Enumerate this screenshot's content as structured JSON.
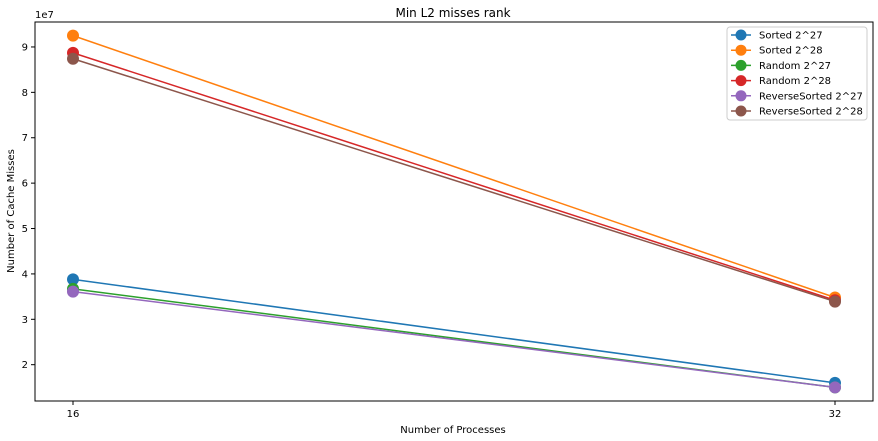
{
  "chart_data": {
    "type": "line",
    "title": "Min L2 misses rank",
    "xlabel": "Number of Processes",
    "ylabel": "Number of Cache Misses",
    "y_offset_text": "1e7",
    "x": [
      16,
      32
    ],
    "x_tick_labels": [
      "16",
      "32"
    ],
    "y_ticks": [
      2,
      3,
      4,
      5,
      6,
      7,
      8,
      9
    ],
    "y_tick_labels": [
      "2",
      "3",
      "4",
      "5",
      "6",
      "7",
      "8",
      "9"
    ],
    "ylim": [
      1.2,
      9.55
    ],
    "y_units_scale": 10000000,
    "grid": false,
    "legend_position": "top-right",
    "series": [
      {
        "name": "Sorted 2^27",
        "color": "#1f77b4",
        "values": [
          3.88,
          1.6
        ]
      },
      {
        "name": "Sorted 2^28",
        "color": "#ff7f0e",
        "values": [
          9.25,
          3.48
        ]
      },
      {
        "name": "Random 2^27",
        "color": "#2ca02c",
        "values": [
          3.67,
          1.5
        ]
      },
      {
        "name": "Random 2^28",
        "color": "#d62728",
        "values": [
          8.87,
          3.42
        ]
      },
      {
        "name": "ReverseSorted 2^27",
        "color": "#9467bd",
        "values": [
          3.61,
          1.5
        ]
      },
      {
        "name": "ReverseSorted 2^28",
        "color": "#8c564b",
        "values": [
          8.74,
          3.39
        ]
      }
    ]
  }
}
